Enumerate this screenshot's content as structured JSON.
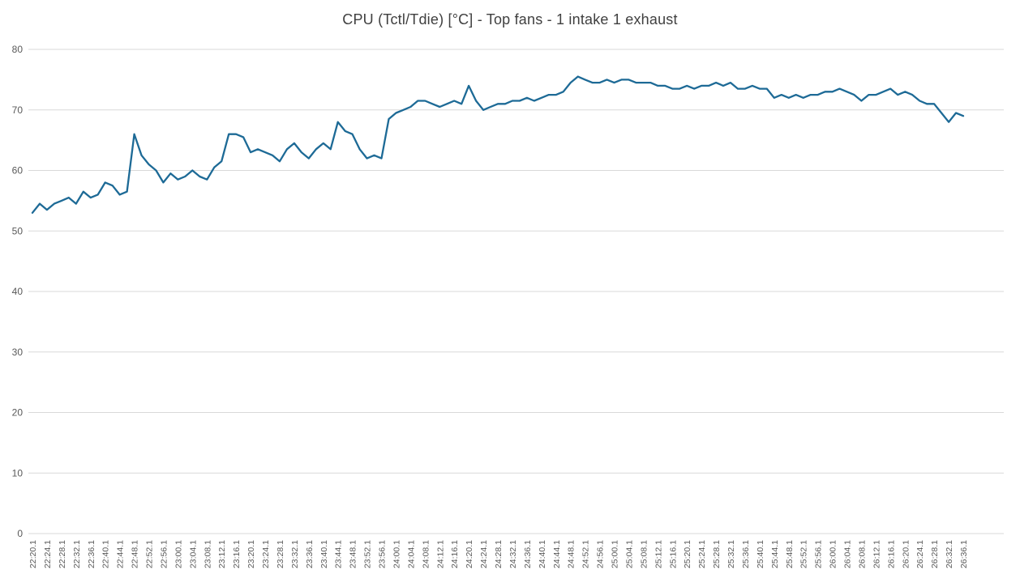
{
  "chart_data": {
    "type": "line",
    "title": "CPU (Tctl/Tdie) [°C] - Top fans - 1 intake 1 exhaust",
    "xlabel": "",
    "ylabel": "",
    "ylim": [
      0,
      80
    ],
    "y_ticks": [
      0,
      10,
      20,
      30,
      40,
      50,
      60,
      70,
      80
    ],
    "grid": "horizontal",
    "legend": "none",
    "colors": {
      "line": "#1d6a96",
      "grid": "#d9d9d9",
      "tick_text": "#595959",
      "title_text": "#404040",
      "background": "#ffffff"
    },
    "x_tick_labels": [
      "22:20.1",
      "22:24.1",
      "22:28.1",
      "22:32.1",
      "22:36.1",
      "22:40.1",
      "22:44.1",
      "22:48.1",
      "22:52.1",
      "22:56.1",
      "23:00.1",
      "23:04.1",
      "23:08.1",
      "23:12.1",
      "23:16.1",
      "23:20.1",
      "23:24.1",
      "23:28.1",
      "23:32.1",
      "23:36.1",
      "23:40.1",
      "23:44.1",
      "23:48.1",
      "23:52.1",
      "23:56.1",
      "24:00.1",
      "24:04.1",
      "24:08.1",
      "24:12.1",
      "24:16.1",
      "24:20.1",
      "24:24.1",
      "24:28.1",
      "24:32.1",
      "24:36.1",
      "24:40.1",
      "24:44.1",
      "24:48.1",
      "24:52.1",
      "24:56.1",
      "25:00.1",
      "25:04.1",
      "25:08.1",
      "25:12.1",
      "25:16.1",
      "25:20.1",
      "25:24.1",
      "25:28.1",
      "25:32.1",
      "25:36.1",
      "25:40.1",
      "25:44.1",
      "25:48.1",
      "25:52.1",
      "25:56.1",
      "26:00.1",
      "26:04.1",
      "26:08.1",
      "26:12.1",
      "26:16.1",
      "26:20.1",
      "26:24.1",
      "26:28.1",
      "26:32.1",
      "26:36.1"
    ],
    "points_per_tick": 2,
    "series": [
      {
        "name": "CPU (Tctl/Tdie) [°C]",
        "values": [
          53,
          54.5,
          53.5,
          54.5,
          55,
          55.5,
          54.5,
          56.5,
          55.5,
          56,
          58,
          57.5,
          56,
          56.5,
          66,
          62.5,
          61,
          60,
          58,
          59.5,
          58.5,
          59,
          60,
          59,
          58.5,
          60.5,
          61.5,
          66,
          66,
          65.5,
          63,
          63.5,
          63,
          62.5,
          61.5,
          63.5,
          64.5,
          63,
          62,
          63.5,
          64.5,
          63.5,
          68,
          66.5,
          66,
          63.5,
          62,
          62.5,
          62,
          68.5,
          69.5,
          70,
          70.5,
          71.5,
          71.5,
          71,
          70.5,
          71,
          71.5,
          71,
          74,
          71.5,
          70,
          70.5,
          71,
          71,
          71.5,
          71.5,
          72,
          71.5,
          72,
          72.5,
          72.5,
          73,
          74.5,
          75.5,
          75,
          74.5,
          74.5,
          75,
          74.5,
          75,
          75,
          74.5,
          74.5,
          74.5,
          74,
          74,
          73.5,
          73.5,
          74,
          73.5,
          74,
          74,
          74.5,
          74,
          74.5,
          73.5,
          73.5,
          74,
          73.5,
          73.5,
          72,
          72.5,
          72,
          72.5,
          72,
          72.5,
          72.5,
          73,
          73,
          73.5,
          73,
          72.5,
          71.5,
          72.5,
          72.5,
          73,
          73.5,
          72.5,
          73,
          72.5,
          71.5,
          71,
          71,
          69.5,
          68,
          69.5,
          69
        ]
      }
    ]
  }
}
